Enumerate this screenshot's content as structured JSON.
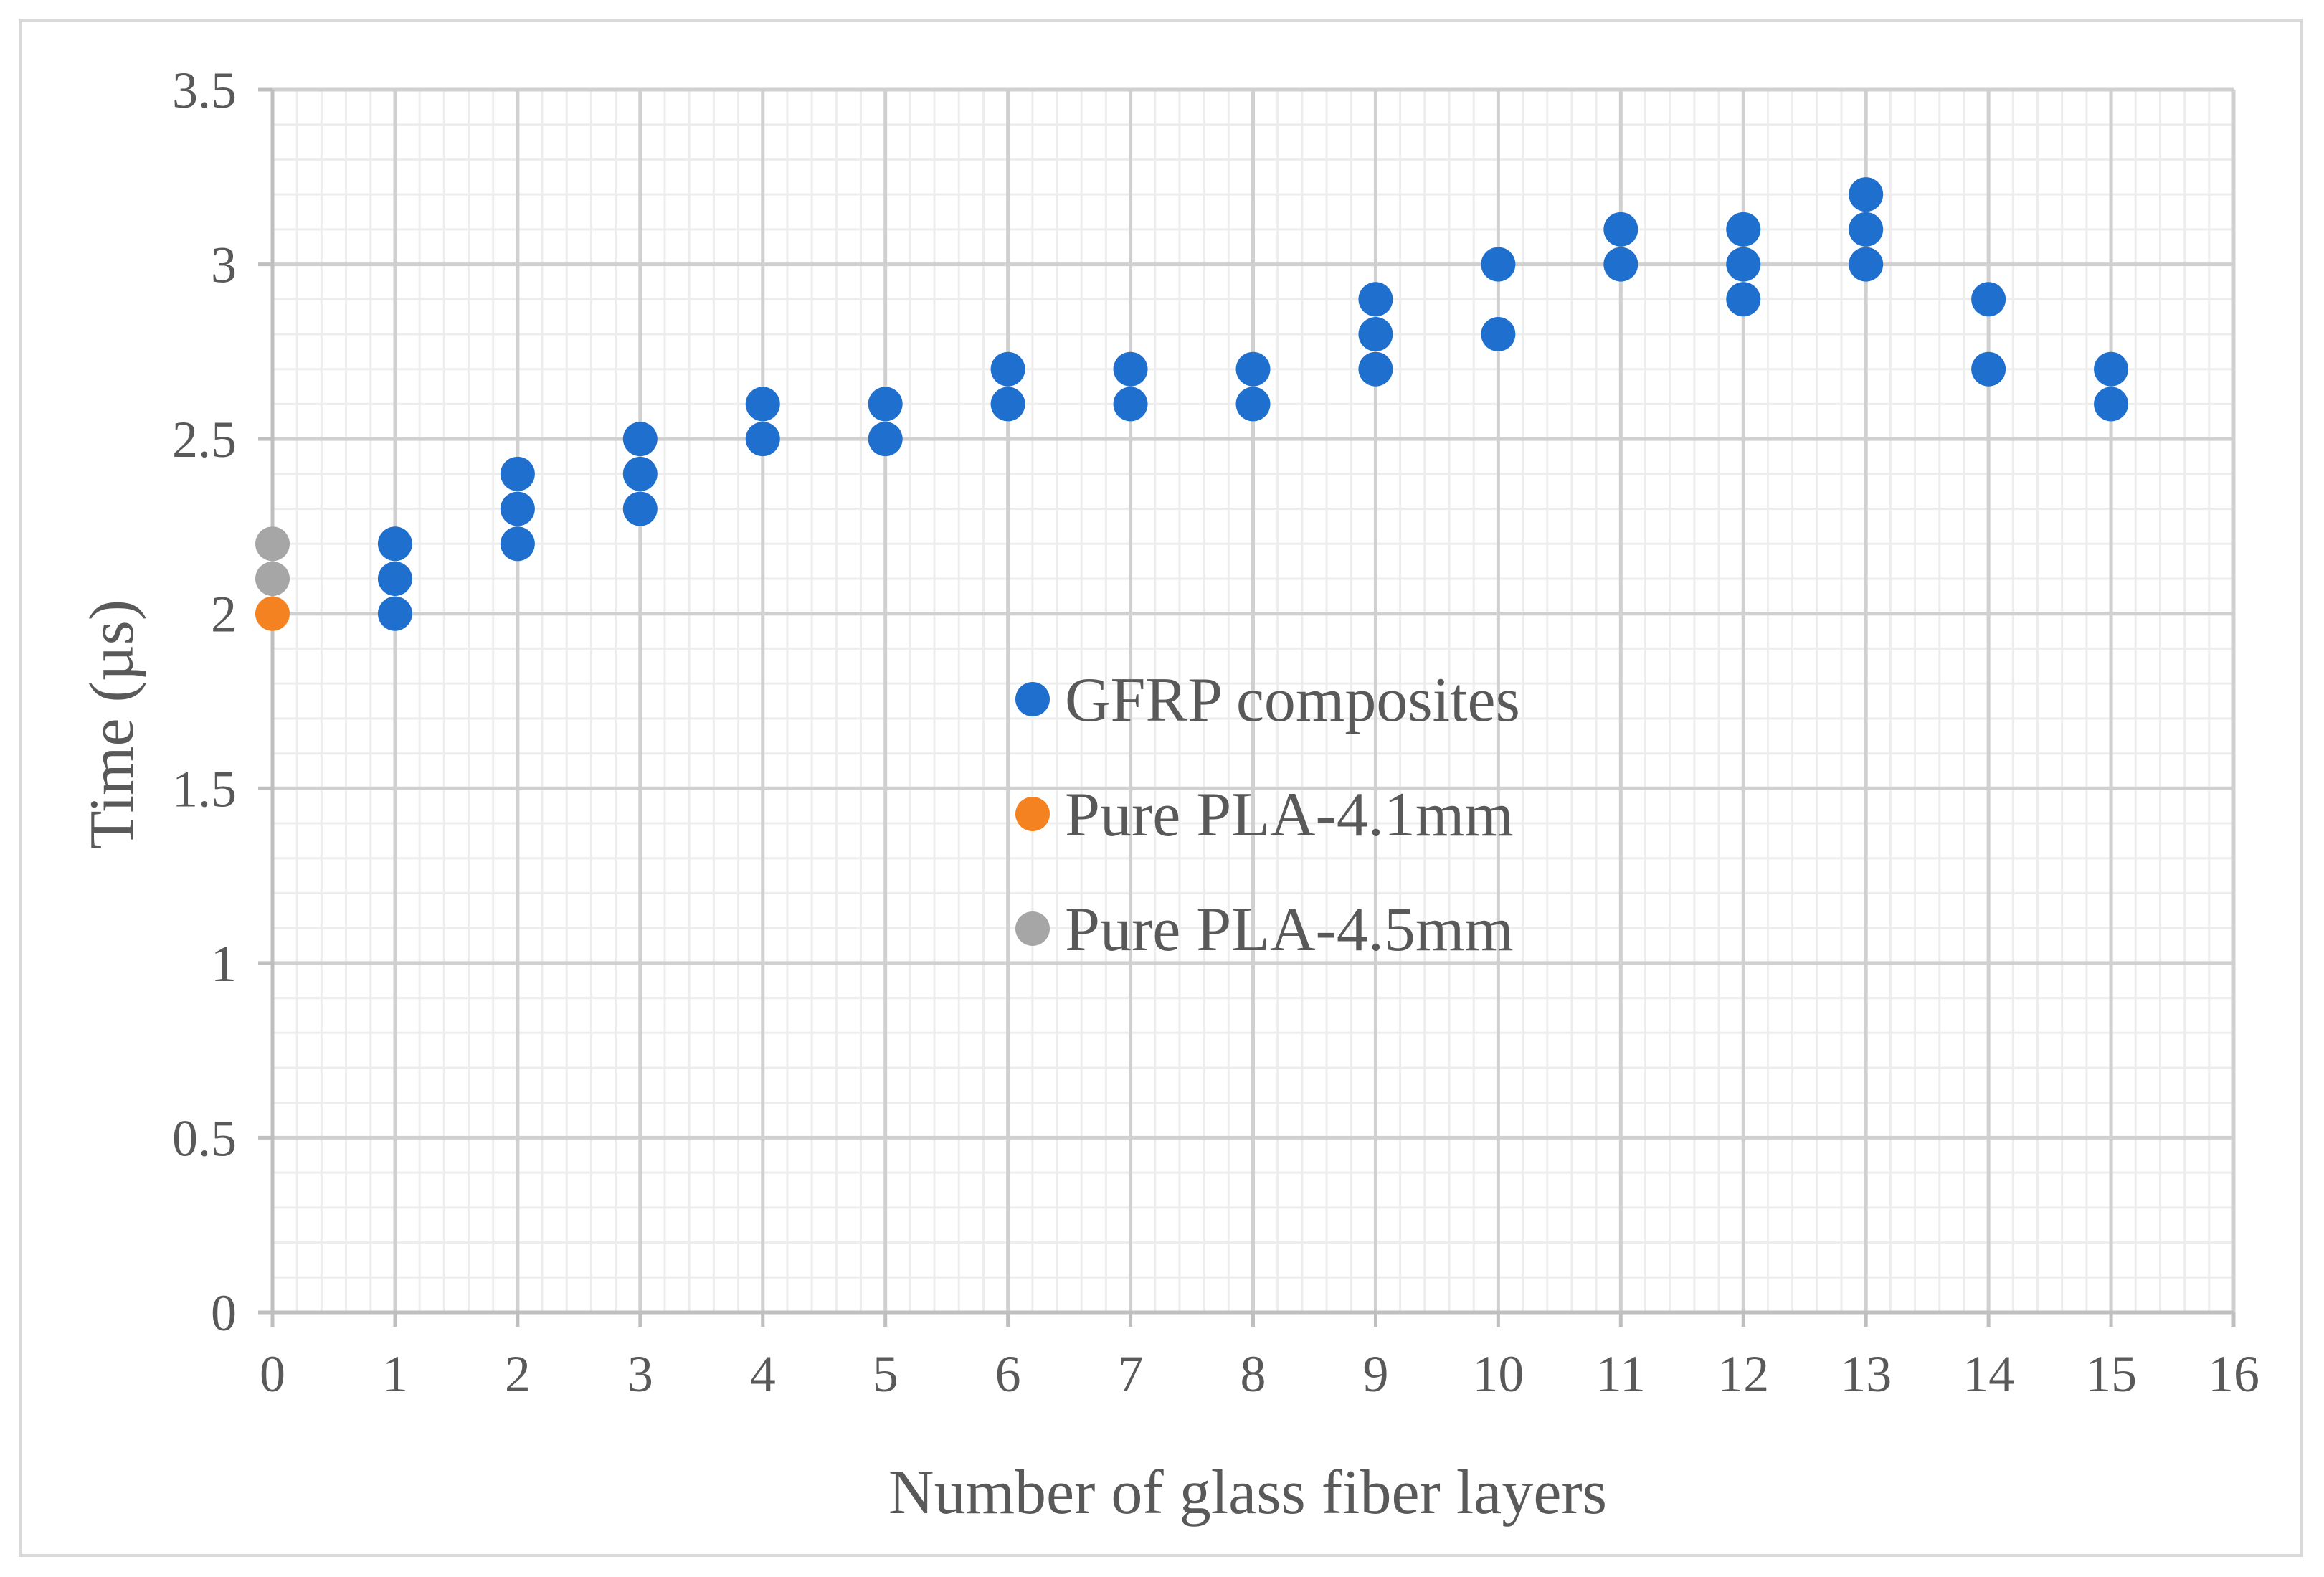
{
  "chart_data": {
    "type": "scatter",
    "title": "",
    "xlabel": "Number of glass fiber layers",
    "ylabel": "Time (µs)",
    "xlim": [
      0,
      16
    ],
    "ylim": [
      0,
      3.5
    ],
    "x_ticks": [
      "0",
      "1",
      "2",
      "3",
      "4",
      "5",
      "6",
      "7",
      "8",
      "9",
      "10",
      "11",
      "12",
      "13",
      "14",
      "15",
      "16"
    ],
    "y_ticks": [
      "0",
      "0.5",
      "1",
      "1.5",
      "2",
      "2.5",
      "3",
      "3.5"
    ],
    "grid": "major and minor",
    "legend_position": "center-right",
    "series": [
      {
        "name": "GFRP composites",
        "color": "#1f6fcf",
        "points": [
          [
            1,
            2.0
          ],
          [
            1,
            2.1
          ],
          [
            1,
            2.2
          ],
          [
            2,
            2.2
          ],
          [
            2,
            2.3
          ],
          [
            2,
            2.4
          ],
          [
            3,
            2.3
          ],
          [
            3,
            2.4
          ],
          [
            3,
            2.5
          ],
          [
            4,
            2.5
          ],
          [
            4,
            2.6
          ],
          [
            5,
            2.5
          ],
          [
            5,
            2.6
          ],
          [
            6,
            2.6
          ],
          [
            6,
            2.7
          ],
          [
            7,
            2.6
          ],
          [
            7,
            2.7
          ],
          [
            8,
            2.6
          ],
          [
            8,
            2.7
          ],
          [
            9,
            2.7
          ],
          [
            9,
            2.8
          ],
          [
            9,
            2.9
          ],
          [
            10,
            2.8
          ],
          [
            10,
            3.0
          ],
          [
            11,
            3.0
          ],
          [
            11,
            3.1
          ],
          [
            12,
            2.9
          ],
          [
            12,
            3.0
          ],
          [
            12,
            3.1
          ],
          [
            13,
            3.0
          ],
          [
            13,
            3.1
          ],
          [
            13,
            3.2
          ],
          [
            14,
            2.7
          ],
          [
            14,
            2.9
          ],
          [
            15,
            2.6
          ],
          [
            15,
            2.7
          ]
        ]
      },
      {
        "name": "Pure PLA-4.1mm",
        "color": "#f58220",
        "points": [
          [
            0,
            2.0
          ]
        ]
      },
      {
        "name": "Pure PLA-4.5mm",
        "color": "#a6a6a6",
        "points": [
          [
            0,
            2.1
          ],
          [
            0,
            2.2
          ]
        ]
      }
    ]
  }
}
